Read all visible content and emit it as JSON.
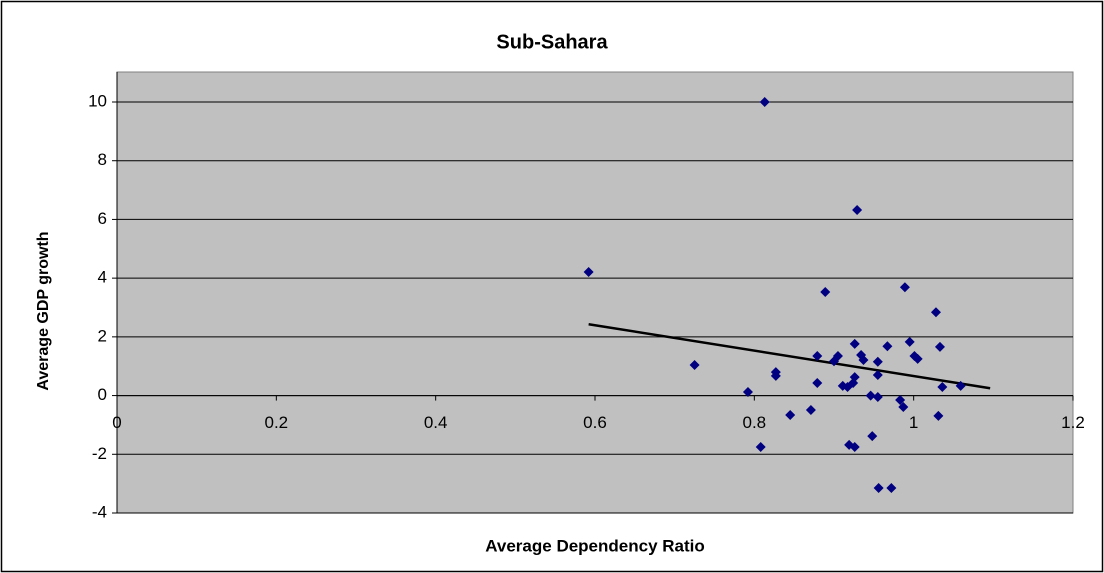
{
  "chart_data": {
    "type": "scatter",
    "title": "Sub-Sahara",
    "xlabel": "Average Dependency Ratio",
    "ylabel": "Average GDP growth",
    "xlim": [
      0,
      1.2
    ],
    "xticks": [
      0,
      0.2,
      0.4,
      0.6,
      0.8,
      1,
      1.2
    ],
    "ylim": [
      -4,
      10
    ],
    "yticks": [
      -4,
      -2,
      0,
      2,
      4,
      6,
      8,
      10
    ],
    "grid": true,
    "color": "#000080",
    "x": [
      0.592,
      0.725,
      0.813,
      0.929,
      0.889,
      0.989,
      1.028,
      0.926,
      0.995,
      1.033,
      0.967,
      0.879,
      0.905,
      0.934,
      0.937,
      0.955,
      1.001,
      1.005,
      0.9,
      0.827,
      0.827,
      0.926,
      0.955,
      0.879,
      0.924,
      0.911,
      0.917,
      0.792,
      0.946,
      0.955,
      1.036,
      1.059,
      0.983,
      0.987,
      0.871,
      0.845,
      1.031,
      0.948,
      0.919,
      0.926,
      0.808,
      0.956,
      0.972
    ],
    "values": [
      4.21,
      1.04,
      10.0,
      6.32,
      3.53,
      3.69,
      2.84,
      1.76,
      1.83,
      1.66,
      1.68,
      1.35,
      1.35,
      1.38,
      1.21,
      1.15,
      1.35,
      1.25,
      1.17,
      0.67,
      0.8,
      0.63,
      0.7,
      0.43,
      0.43,
      0.33,
      0.29,
      0.12,
      0.0,
      -0.05,
      0.29,
      0.33,
      -0.15,
      -0.39,
      -0.49,
      -0.66,
      -0.69,
      -1.38,
      -1.68,
      -1.75,
      -1.75,
      -3.15,
      -3.15
    ],
    "trendline": {
      "color": "#000000",
      "x": [
        0.592,
        1.096
      ],
      "values": [
        2.43,
        0.25
      ]
    }
  }
}
